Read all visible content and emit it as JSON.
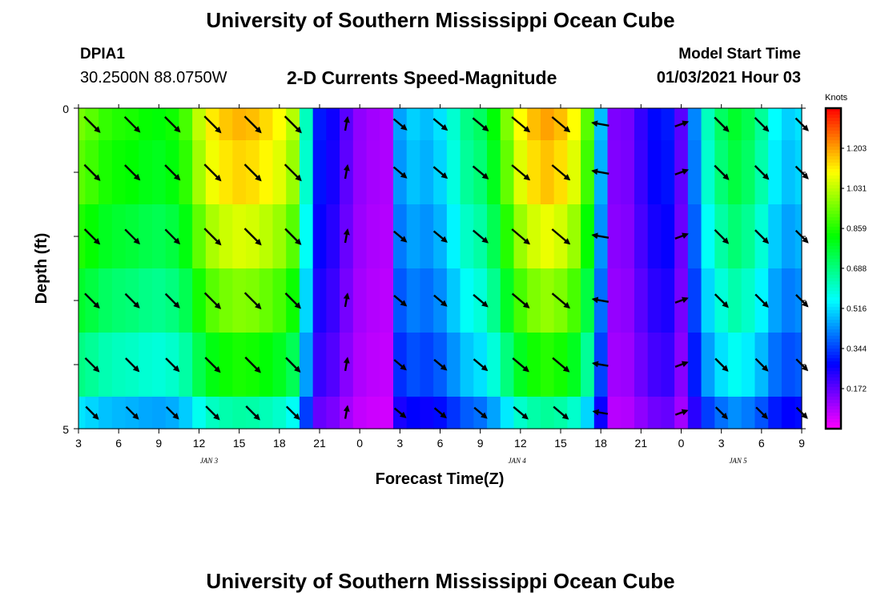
{
  "header": {
    "title": "University of Southern Mississippi Ocean Cube",
    "station": "DPIA1",
    "location": "30.2500N 88.0750W",
    "subtitle": "2-D Currents Speed-Magnitude",
    "model_label": "Model Start Time",
    "model_time": "01/03/2021 Hour 03"
  },
  "footer": {
    "title": "University of Southern Mississippi Ocean Cube"
  },
  "chart_data": {
    "type": "heatmap",
    "title": "2-D Currents Speed-Magnitude",
    "xlabel": "Forecast Time(Z)",
    "ylabel": "Depth (ft)",
    "colorbar_label": "Knots",
    "colorbar_ticks": [
      "1.203",
      "1.031",
      "0.859",
      "0.688",
      "0.516",
      "0.344",
      "0.172"
    ],
    "colorbar_range": [
      0,
      1.375
    ],
    "x_range_hours": [
      0,
      54
    ],
    "x_tick_labels": [
      "3",
      "6",
      "9",
      "12",
      "15",
      "18",
      "21",
      "0",
      "3",
      "6",
      "9",
      "12",
      "15",
      "18",
      "21",
      "0",
      "3",
      "6",
      "9"
    ],
    "date_labels": [
      {
        "text": "JAN 3",
        "hour": 9.75
      },
      {
        "text": "JAN 4",
        "hour": 32.75
      },
      {
        "text": "JAN 5",
        "hour": 49.25
      }
    ],
    "y_range": [
      0,
      5
    ],
    "y_tick_labels": [
      "0",
      "5"
    ],
    "depth_rows": [
      "0-0.5",
      "0.5-1.5",
      "1.5-2.5",
      "2.5-3.5",
      "3.5-4.5",
      "4.5-5"
    ],
    "time_hours": [
      0,
      1,
      2,
      3,
      4,
      5,
      6,
      7,
      8,
      9,
      10,
      11,
      12,
      13,
      14,
      15,
      16,
      17,
      18,
      19,
      20,
      21,
      22,
      23,
      24,
      25,
      26,
      27,
      28,
      29,
      30,
      31,
      32,
      33,
      34,
      35,
      36,
      37,
      38,
      39,
      40,
      41,
      42,
      43,
      44,
      45,
      46,
      47,
      48,
      49,
      50,
      51,
      52,
      53,
      54
    ],
    "speed_profile": [
      0.95,
      0.92,
      0.88,
      0.86,
      0.85,
      0.83,
      0.82,
      0.84,
      0.9,
      1.03,
      1.12,
      1.16,
      1.18,
      1.17,
      1.14,
      1.1,
      1.02,
      0.62,
      0.3,
      0.26,
      0.18,
      0.12,
      0.1,
      0.09,
      0.45,
      0.5,
      0.48,
      0.52,
      0.6,
      0.68,
      0.72,
      0.82,
      0.96,
      1.1,
      1.17,
      1.2,
      1.17,
      1.1,
      0.92,
      0.48,
      0.14,
      0.15,
      0.22,
      0.28,
      0.3,
      0.18,
      0.42,
      0.62,
      0.72,
      0.78,
      0.74,
      0.66,
      0.55,
      0.5,
      0.52
    ],
    "row_factors": [
      1.0,
      0.97,
      0.9,
      0.82,
      0.72,
      0.55
    ],
    "arrow_hours": [
      1,
      4,
      7,
      10,
      13,
      16,
      20,
      24,
      27,
      30,
      33,
      36,
      39,
      45,
      48,
      51,
      54
    ],
    "arrow_rows": [
      0,
      1,
      2,
      3,
      4,
      5
    ],
    "speed_units": "knots"
  }
}
